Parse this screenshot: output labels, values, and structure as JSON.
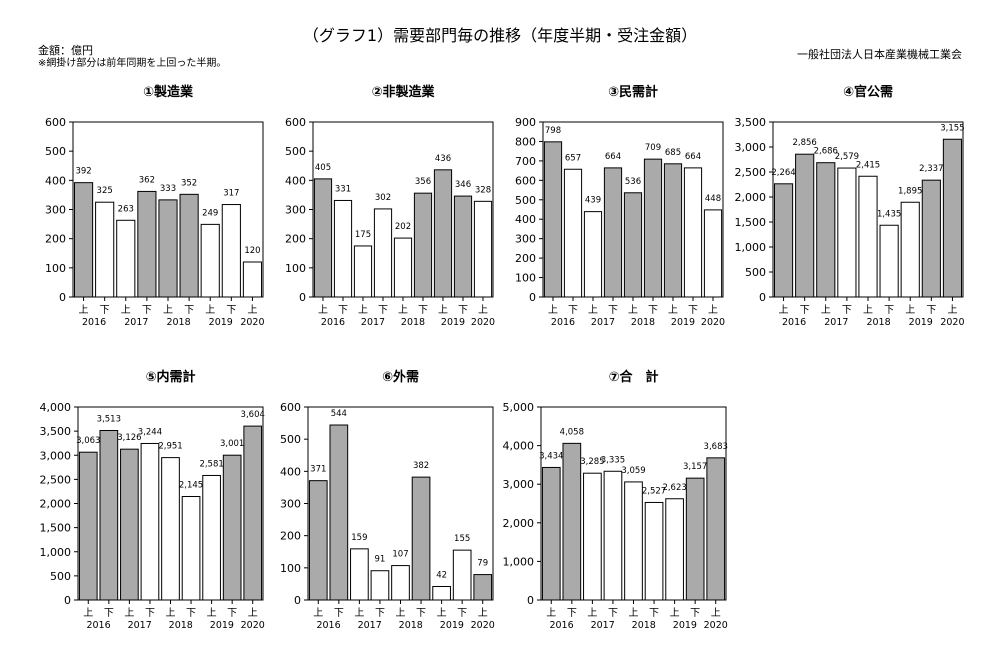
{
  "page": {
    "title": "（グラフ1）需要部門毎の推移（年度半期・受注金額）",
    "unit": "金額：億円",
    "note": "※網掛け部分は前年同期を上回った半期。",
    "org": "一般社団法人日本産業機械工業会"
  },
  "colors": {
    "shaded": "#aaaaaa",
    "plain": "#ffffff",
    "stroke": "#000000"
  },
  "chart_data": [
    {
      "type": "bar",
      "title": "①製造業",
      "categories": [
        "上",
        "下",
        "上",
        "下",
        "上",
        "下",
        "上",
        "下",
        "上"
      ],
      "years": [
        "2016",
        "2017",
        "2018",
        "2019",
        "2020"
      ],
      "values": [
        392,
        325,
        263,
        362,
        333,
        352,
        249,
        317,
        120
      ],
      "value_labels": [
        "392",
        "325",
        "263",
        "362",
        "333",
        "352",
        "249",
        "317",
        "120"
      ],
      "shaded": [
        true,
        false,
        false,
        true,
        true,
        true,
        false,
        false,
        false
      ],
      "ylim": [
        0,
        600
      ],
      "yticks": [
        "0",
        "100",
        "200",
        "300",
        "400",
        "500",
        "600"
      ]
    },
    {
      "type": "bar",
      "title": "②非製造業",
      "categories": [
        "上",
        "下",
        "上",
        "下",
        "上",
        "下",
        "上",
        "下",
        "上"
      ],
      "years": [
        "2016",
        "2017",
        "2018",
        "2019",
        "2020"
      ],
      "values": [
        405,
        331,
        175,
        302,
        202,
        356,
        436,
        346,
        328
      ],
      "value_labels": [
        "405",
        "331",
        "175",
        "302",
        "202",
        "356",
        "436",
        "346",
        "328"
      ],
      "shaded": [
        true,
        false,
        false,
        false,
        false,
        true,
        true,
        true,
        false
      ],
      "ylim": [
        0,
        600
      ],
      "yticks": [
        "0",
        "100",
        "200",
        "300",
        "400",
        "500",
        "600"
      ]
    },
    {
      "type": "bar",
      "title": "③民需計",
      "categories": [
        "上",
        "下",
        "上",
        "下",
        "上",
        "下",
        "上",
        "下",
        "上"
      ],
      "years": [
        "2016",
        "2017",
        "2018",
        "2019",
        "2020"
      ],
      "values": [
        798,
        657,
        439,
        664,
        536,
        709,
        685,
        664,
        448
      ],
      "value_labels": [
        "798",
        "657",
        "439",
        "664",
        "536",
        "709",
        "685",
        "664",
        "448"
      ],
      "shaded": [
        true,
        false,
        false,
        true,
        true,
        true,
        true,
        false,
        false
      ],
      "ylim": [
        0,
        900
      ],
      "yticks": [
        "0",
        "100",
        "200",
        "300",
        "400",
        "500",
        "600",
        "700",
        "800",
        "900"
      ]
    },
    {
      "type": "bar",
      "title": "④官公需",
      "categories": [
        "上",
        "下",
        "上",
        "下",
        "上",
        "下",
        "上",
        "下",
        "上"
      ],
      "years": [
        "2016",
        "2017",
        "2018",
        "2019",
        "2020"
      ],
      "values": [
        2264,
        2856,
        2686,
        2579,
        2415,
        1435,
        1895,
        2337,
        3155
      ],
      "value_labels": [
        "2,264",
        "2,856",
        "2,686",
        "2,579",
        "2,415",
        "1,435",
        "1,895",
        "2,337",
        "3,155"
      ],
      "shaded": [
        true,
        true,
        true,
        false,
        false,
        false,
        false,
        true,
        true
      ],
      "ylim": [
        0,
        3500
      ],
      "yticks": [
        "0",
        "500",
        "1,000",
        "1,500",
        "2,000",
        "2,500",
        "3,000",
        "3,500"
      ]
    },
    {
      "type": "bar",
      "title": "⑤内需計",
      "categories": [
        "上",
        "下",
        "上",
        "下",
        "上",
        "下",
        "上",
        "下",
        "上"
      ],
      "years": [
        "2016",
        "2017",
        "2018",
        "2019",
        "2020"
      ],
      "values": [
        3063,
        3513,
        3126,
        3244,
        2951,
        2145,
        2581,
        3001,
        3604
      ],
      "value_labels": [
        "3,063",
        "3,513",
        "3,126",
        "3,244",
        "2,951",
        "2,145",
        "2,581",
        "3,001",
        "3,604"
      ],
      "shaded": [
        true,
        true,
        true,
        false,
        false,
        false,
        false,
        true,
        true
      ],
      "ylim": [
        0,
        4000
      ],
      "yticks": [
        "0",
        "500",
        "1,000",
        "1,500",
        "2,000",
        "2,500",
        "3,000",
        "3,500",
        "4,000"
      ]
    },
    {
      "type": "bar",
      "title": "⑥外需",
      "categories": [
        "上",
        "下",
        "上",
        "下",
        "上",
        "下",
        "上",
        "下",
        "上"
      ],
      "years": [
        "2016",
        "2017",
        "2018",
        "2019",
        "2020"
      ],
      "values": [
        371,
        544,
        159,
        91,
        107,
        382,
        42,
        155,
        79
      ],
      "value_labels": [
        "371",
        "544",
        "159",
        "91",
        "107",
        "382",
        "42",
        "155",
        "79"
      ],
      "shaded": [
        true,
        true,
        false,
        false,
        false,
        true,
        false,
        false,
        true
      ],
      "ylim": [
        0,
        600
      ],
      "yticks": [
        "0",
        "100",
        "200",
        "300",
        "400",
        "500",
        "600"
      ]
    },
    {
      "type": "bar",
      "title": "⑦合　計",
      "categories": [
        "上",
        "下",
        "上",
        "下",
        "上",
        "下",
        "上",
        "下",
        "上"
      ],
      "years": [
        "2016",
        "2017",
        "2018",
        "2019",
        "2020"
      ],
      "values": [
        3434,
        4058,
        3285,
        3335,
        3059,
        2527,
        2623,
        3157,
        3683
      ],
      "value_labels": [
        "3,434",
        "4,058",
        "3,285",
        "3,335",
        "3,059",
        "2,527",
        "2,623",
        "3,157",
        "3,683"
      ],
      "shaded": [
        true,
        true,
        false,
        false,
        false,
        false,
        false,
        true,
        true
      ],
      "ylim": [
        0,
        5000
      ],
      "yticks": [
        "0",
        "1,000",
        "2,000",
        "3,000",
        "4,000",
        "5,000"
      ]
    }
  ]
}
